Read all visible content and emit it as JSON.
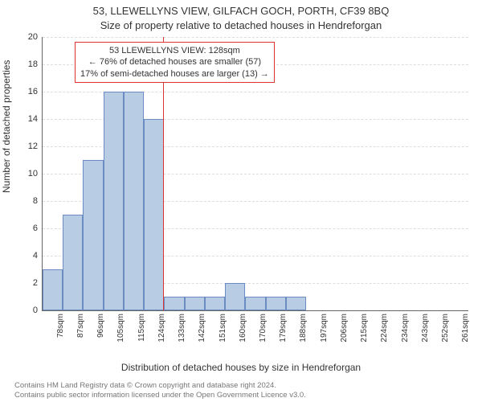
{
  "title_line1": "53, LLEWELLYNS VIEW, GILFACH GOCH, PORTH, CF39 8BQ",
  "title_line2": "Size of property relative to detached houses in Hendreforgan",
  "ylabel": "Number of detached properties",
  "xlabel": "Distribution of detached houses by size in Hendreforgan",
  "chart": {
    "type": "histogram",
    "ylim": [
      0,
      20
    ],
    "ytick_step": 2,
    "background_color": "#ffffff",
    "grid_color": "#dddddd",
    "axis_color": "#666666",
    "bar_fill": "#b8cce4",
    "bar_border": "#6a8cc2",
    "refline_color": "#dd3333",
    "refline_value": 128,
    "xaxis_label_fontsize": 10,
    "yaxis_label_fontsize": 11,
    "bar_width_ratio": 1.0,
    "categories": [
      "78sqm",
      "87sqm",
      "96sqm",
      "105sqm",
      "115sqm",
      "124sqm",
      "133sqm",
      "142sqm",
      "151sqm",
      "160sqm",
      "170sqm",
      "179sqm",
      "188sqm",
      "197sqm",
      "206sqm",
      "215sqm",
      "224sqm",
      "234sqm",
      "243sqm",
      "252sqm",
      "261sqm"
    ],
    "values": [
      3,
      7,
      11,
      16,
      16,
      14,
      1,
      1,
      1,
      2,
      1,
      1,
      1,
      0,
      0,
      0,
      0,
      0,
      0,
      0,
      0
    ]
  },
  "annotation": {
    "line1": "53 LLEWELLYNS VIEW: 128sqm",
    "line2": "← 76% of detached houses are smaller (57)",
    "line3": "17% of semi-detached houses are larger (13) →",
    "border_color": "#dd3333",
    "fontsize": 11
  },
  "footer": {
    "line1": "Contains HM Land Registry data © Crown copyright and database right 2024.",
    "line2": "Contains public sector information licensed under the Open Government Licence v3.0.",
    "color": "#777777",
    "fontsize": 9.5
  }
}
